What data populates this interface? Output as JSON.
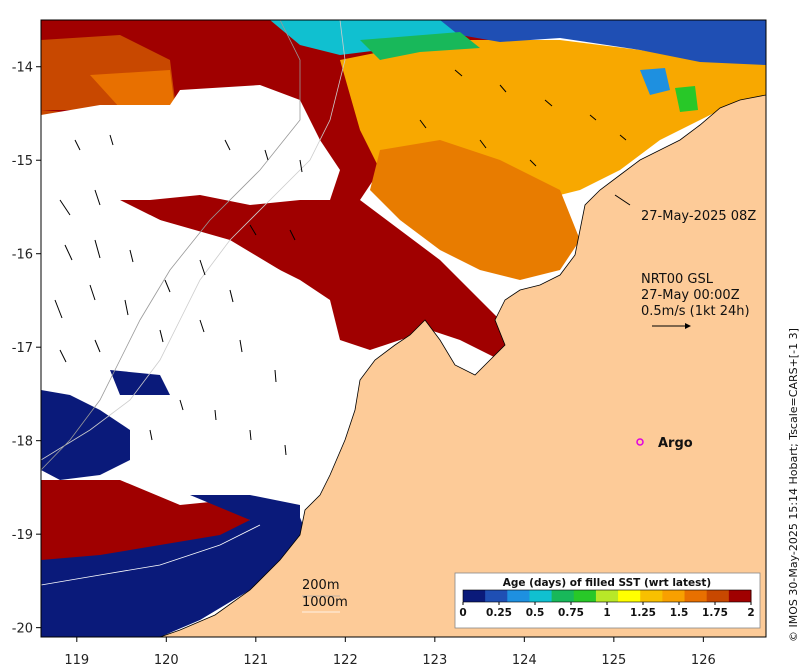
{
  "map": {
    "x_ticks": [
      "119",
      "120",
      "121",
      "122",
      "123",
      "124",
      "125",
      "126"
    ],
    "y_ticks": [
      "-14",
      "-15",
      "-16",
      "-17",
      "-18",
      "-19",
      "-20"
    ],
    "lon_range": [
      118.6,
      126.7
    ],
    "lat_range": [
      -20.1,
      -13.5
    ],
    "land_color": "#fdcb98",
    "nodata_color": "#ffffff"
  },
  "annotations": {
    "timestamp": "27-May-2025 08Z",
    "current_title": "NRT00 GSL",
    "current_time": "27-May 00:00Z",
    "current_scale": "0.5m/s (1kt 24h)",
    "argo_label": "Argo",
    "contour_200": "200m",
    "contour_1000": "1000m"
  },
  "colorbar": {
    "title": "Age (days) of filled SST (wrt latest)",
    "ticks": [
      "0",
      "0.25",
      "0.5",
      "0.75",
      "1",
      "1.25",
      "1.5",
      "1.75",
      "2"
    ],
    "colors": [
      "#0a1a7a",
      "#1f4fb4",
      "#1e90e0",
      "#10c0d0",
      "#18b85a",
      "#28c828",
      "#b8e828",
      "#ffff00",
      "#f8c000",
      "#f8a000",
      "#e87000",
      "#c84800",
      "#a00000"
    ]
  },
  "credit": "© IMOS 30-May-2025 15:14 Hobart; Tscale=CARS+[-1 3]"
}
